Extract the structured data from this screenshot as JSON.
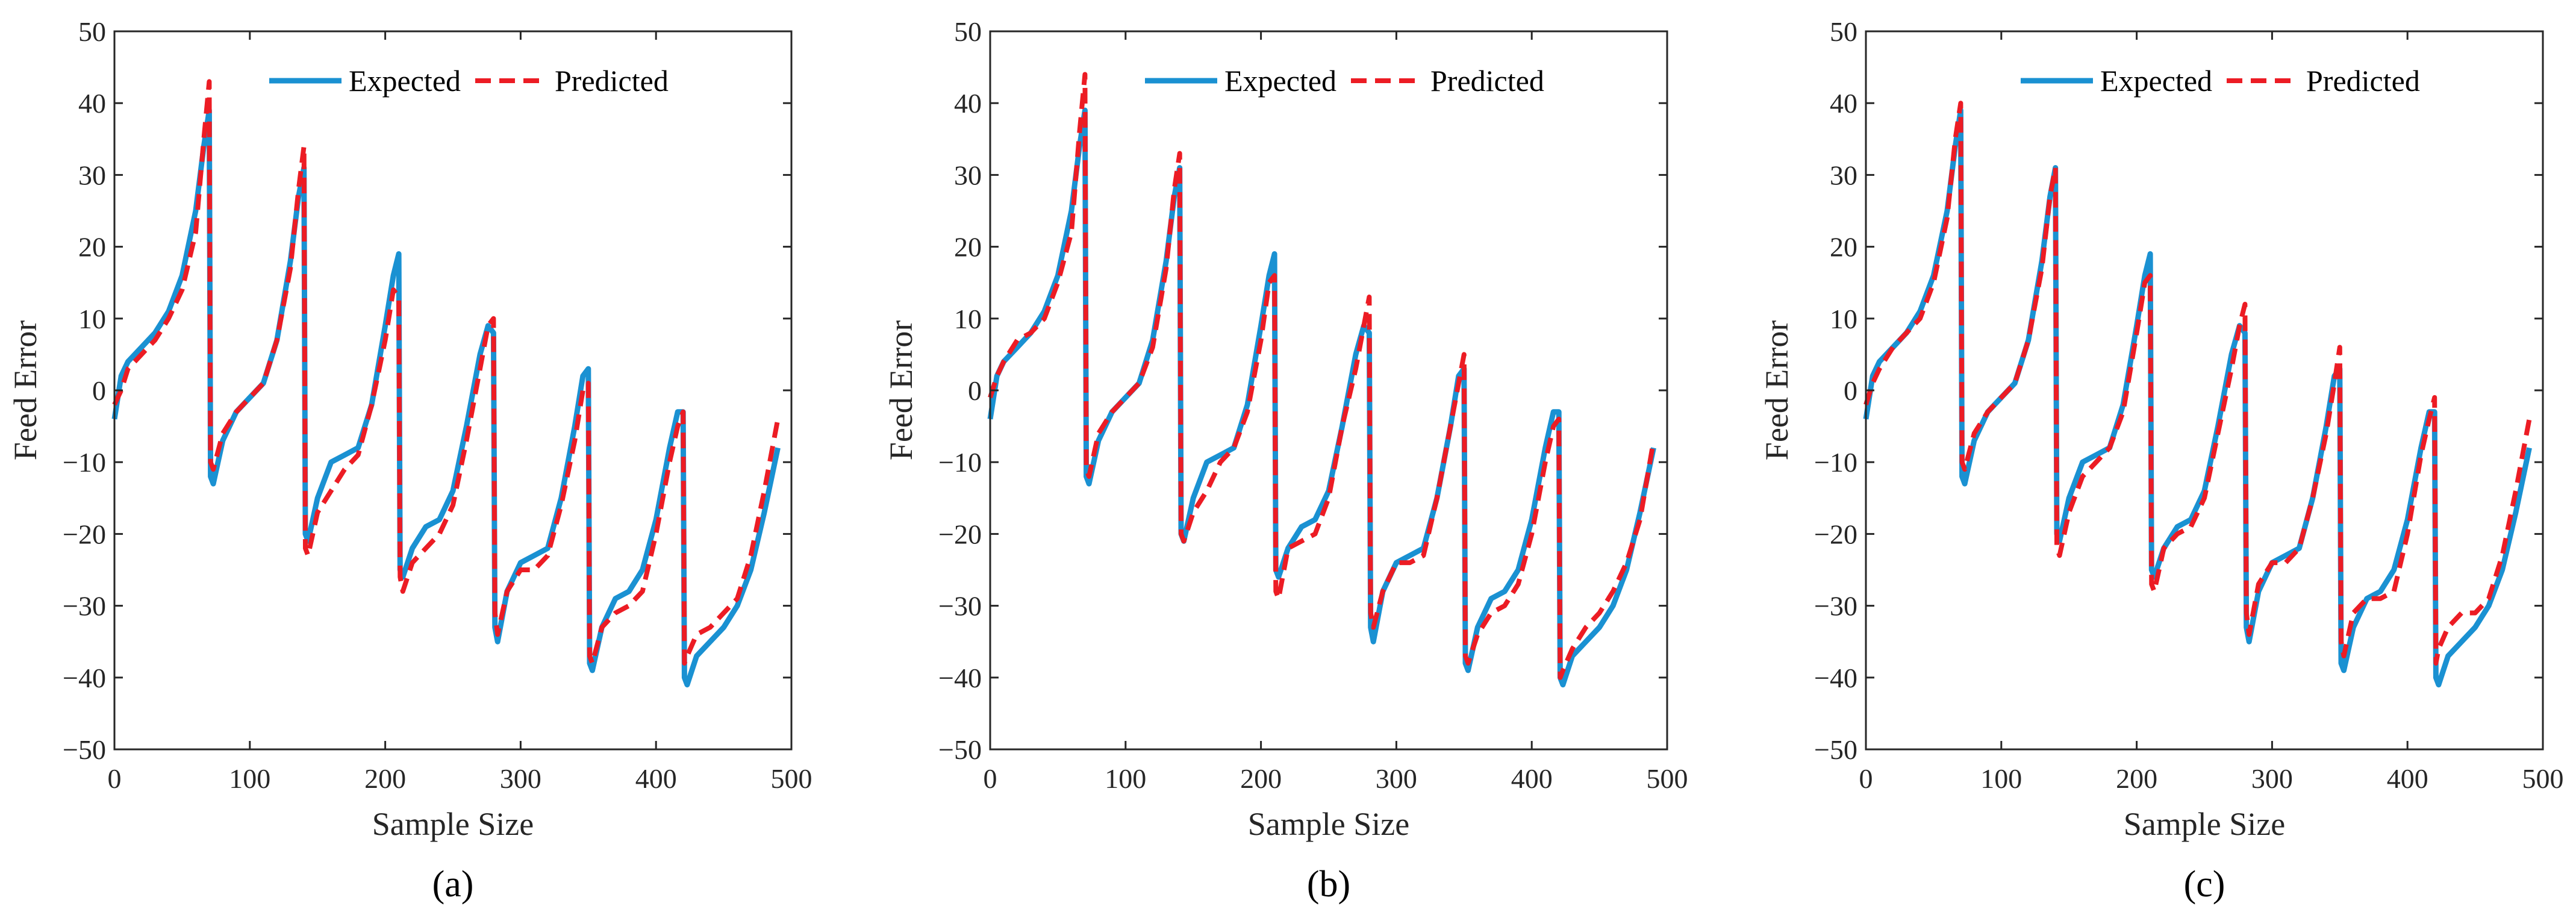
{
  "figure": {
    "panel_captions": [
      "(a)",
      "(b)",
      "(c)"
    ]
  },
  "chart_data": [
    {
      "type": "line",
      "panel": "(a)",
      "title": "",
      "xlabel": "Sample Size",
      "ylabel": "Feed Error",
      "xlim": [
        0,
        500
      ],
      "ylim": [
        -50,
        50
      ],
      "xticks": [
        0,
        100,
        200,
        300,
        400,
        500
      ],
      "yticks": [
        -50,
        -40,
        -30,
        -20,
        -10,
        0,
        10,
        20,
        30,
        40,
        50
      ],
      "xtick_labels": [
        "0",
        "100",
        "200",
        "300",
        "400",
        "500"
      ],
      "ytick_labels": [
        "−50",
        "−40",
        "−30",
        "−20",
        "−10",
        "0",
        "10",
        "20",
        "30",
        "40",
        "50"
      ],
      "grid": false,
      "legend": {
        "position": "top-center",
        "orientation": "horizontal"
      },
      "series": [
        {
          "name": "Expected",
          "color": "#1a91d2",
          "style": "solid",
          "x": [
            0,
            5,
            10,
            20,
            30,
            40,
            50,
            60,
            66,
            70,
            71,
            73,
            80,
            90,
            100,
            110,
            120,
            130,
            136,
            140,
            141,
            143,
            150,
            160,
            170,
            180,
            190,
            200,
            206,
            210,
            211,
            213,
            220,
            230,
            240,
            250,
            260,
            270,
            276,
            280,
            281,
            283,
            290,
            300,
            310,
            320,
            330,
            340,
            346,
            350,
            351,
            353,
            360,
            370,
            380,
            390,
            400,
            410,
            416,
            420,
            421,
            423,
            430,
            440,
            450,
            460,
            470,
            480,
            490
          ],
          "y": [
            -4,
            2,
            4,
            6,
            8,
            11,
            16,
            25,
            34,
            39,
            -12,
            -13,
            -7,
            -3,
            -1,
            1,
            7,
            18,
            27,
            31,
            -20,
            -21,
            -15,
            -10,
            -9,
            -8,
            -2,
            9,
            16,
            19,
            -25,
            -26,
            -22,
            -19,
            -18,
            -14,
            -5,
            5,
            9,
            8,
            -33,
            -35,
            -28,
            -24,
            -23,
            -22,
            -15,
            -5,
            2,
            3,
            -38,
            -39,
            -33,
            -29,
            -28,
            -25,
            -18,
            -8,
            -3,
            -3,
            -40,
            -41,
            -37,
            -35,
            -33,
            -30,
            -25,
            -17,
            -8
          ]
        },
        {
          "name": "Predicted",
          "color": "#ec1c24",
          "style": "dashed",
          "x": [
            0,
            5,
            10,
            20,
            30,
            40,
            50,
            60,
            66,
            70,
            71,
            73,
            80,
            90,
            100,
            110,
            120,
            130,
            136,
            140,
            141,
            143,
            150,
            160,
            170,
            180,
            190,
            200,
            206,
            210,
            211,
            213,
            220,
            230,
            240,
            250,
            260,
            270,
            276,
            280,
            281,
            283,
            290,
            300,
            310,
            320,
            330,
            340,
            346,
            350,
            351,
            353,
            360,
            370,
            380,
            390,
            400,
            410,
            416,
            420,
            421,
            423,
            430,
            440,
            450,
            460,
            470,
            480,
            490
          ],
          "y": [
            -2,
            0,
            3,
            5,
            7,
            10,
            14,
            22,
            35,
            43,
            -10,
            -11,
            -6,
            -3,
            -1,
            1,
            7,
            17,
            28,
            34,
            -22,
            -23,
            -17,
            -14,
            -11,
            -9,
            -2,
            7,
            14,
            13,
            -26,
            -28,
            -24,
            -22,
            -20,
            -16,
            -7,
            3,
            9,
            10,
            -31,
            -34,
            -28,
            -25,
            -25,
            -23,
            -16,
            -7,
            0,
            1,
            -37,
            -38,
            -33,
            -31,
            -30,
            -28,
            -20,
            -10,
            -5,
            -3,
            -38,
            -37,
            -34,
            -33,
            -31,
            -29,
            -23,
            -14,
            -4
          ]
        }
      ]
    },
    {
      "type": "line",
      "panel": "(b)",
      "title": "",
      "xlabel": "Sample Size",
      "ylabel": "Feed Error",
      "xlim": [
        0,
        500
      ],
      "ylim": [
        -50,
        50
      ],
      "xticks": [
        0,
        100,
        200,
        300,
        400,
        500
      ],
      "yticks": [
        -50,
        -40,
        -30,
        -20,
        -10,
        0,
        10,
        20,
        30,
        40,
        50
      ],
      "xtick_labels": [
        "0",
        "100",
        "200",
        "300",
        "400",
        "500"
      ],
      "ytick_labels": [
        "−50",
        "−40",
        "−30",
        "−20",
        "−10",
        "0",
        "10",
        "20",
        "30",
        "40",
        "50"
      ],
      "grid": false,
      "legend": {
        "position": "top-center",
        "orientation": "horizontal"
      },
      "series": [
        {
          "name": "Expected",
          "color": "#1a91d2",
          "style": "solid",
          "x": [
            0,
            5,
            10,
            20,
            30,
            40,
            50,
            60,
            66,
            70,
            71,
            73,
            80,
            90,
            100,
            110,
            120,
            130,
            136,
            140,
            141,
            143,
            150,
            160,
            170,
            180,
            190,
            200,
            206,
            210,
            211,
            213,
            220,
            230,
            240,
            250,
            260,
            270,
            276,
            280,
            281,
            283,
            290,
            300,
            310,
            320,
            330,
            340,
            346,
            350,
            351,
            353,
            360,
            370,
            380,
            390,
            400,
            410,
            416,
            420,
            421,
            423,
            430,
            440,
            450,
            460,
            470,
            480,
            490
          ],
          "y": [
            -4,
            2,
            4,
            6,
            8,
            11,
            16,
            25,
            34,
            39,
            -12,
            -13,
            -7,
            -3,
            -1,
            1,
            7,
            18,
            27,
            31,
            -20,
            -21,
            -15,
            -10,
            -9,
            -8,
            -2,
            9,
            16,
            19,
            -25,
            -26,
            -22,
            -19,
            -18,
            -14,
            -5,
            5,
            9,
            8,
            -33,
            -35,
            -28,
            -24,
            -23,
            -22,
            -15,
            -5,
            2,
            3,
            -38,
            -39,
            -33,
            -29,
            -28,
            -25,
            -18,
            -8,
            -3,
            -3,
            -40,
            -41,
            -37,
            -35,
            -33,
            -30,
            -25,
            -17,
            -8
          ]
        },
        {
          "name": "Predicted",
          "color": "#ec1c24",
          "style": "dashed",
          "x": [
            0,
            5,
            10,
            20,
            30,
            40,
            50,
            60,
            66,
            70,
            71,
            73,
            80,
            90,
            100,
            110,
            120,
            130,
            136,
            140,
            141,
            143,
            150,
            160,
            170,
            180,
            190,
            200,
            206,
            210,
            211,
            213,
            220,
            230,
            240,
            250,
            260,
            270,
            276,
            280,
            281,
            283,
            290,
            300,
            310,
            320,
            330,
            340,
            346,
            350,
            351,
            353,
            360,
            370,
            380,
            390,
            400,
            410,
            416,
            420,
            421,
            423,
            430,
            440,
            450,
            460,
            470,
            480,
            490
          ],
          "y": [
            -1,
            2,
            4,
            7,
            8,
            10,
            15,
            22,
            36,
            44,
            -11,
            -12,
            -6,
            -3,
            -1,
            1,
            6,
            17,
            28,
            33,
            -20,
            -21,
            -17,
            -14,
            -10,
            -8,
            -3,
            7,
            15,
            16,
            -28,
            -29,
            -22,
            -21,
            -20,
            -15,
            -5,
            3,
            9,
            13,
            -31,
            -33,
            -28,
            -24,
            -24,
            -23,
            -15,
            -5,
            1,
            5,
            -37,
            -38,
            -34,
            -31,
            -30,
            -27,
            -20,
            -10,
            -5,
            -4,
            -40,
            -39,
            -36,
            -33,
            -31,
            -28,
            -24,
            -18,
            -7
          ]
        }
      ]
    },
    {
      "type": "line",
      "panel": "(c)",
      "title": "",
      "xlabel": "Sample Size",
      "ylabel": "Feed Error",
      "xlim": [
        0,
        500
      ],
      "ylim": [
        -50,
        50
      ],
      "xticks": [
        0,
        100,
        200,
        300,
        400,
        500
      ],
      "yticks": [
        -50,
        -40,
        -30,
        -20,
        -10,
        0,
        10,
        20,
        30,
        40,
        50
      ],
      "xtick_labels": [
        "0",
        "100",
        "200",
        "300",
        "400",
        "500"
      ],
      "ytick_labels": [
        "−50",
        "−40",
        "−30",
        "−20",
        "−10",
        "0",
        "10",
        "20",
        "30",
        "40",
        "50"
      ],
      "grid": false,
      "legend": {
        "position": "top-center",
        "orientation": "horizontal"
      },
      "series": [
        {
          "name": "Expected",
          "color": "#1a91d2",
          "style": "solid",
          "x": [
            0,
            5,
            10,
            20,
            30,
            40,
            50,
            60,
            66,
            70,
            71,
            73,
            80,
            90,
            100,
            110,
            120,
            130,
            136,
            140,
            141,
            143,
            150,
            160,
            170,
            180,
            190,
            200,
            206,
            210,
            211,
            213,
            220,
            230,
            240,
            250,
            260,
            270,
            276,
            280,
            281,
            283,
            290,
            300,
            310,
            320,
            330,
            340,
            346,
            350,
            351,
            353,
            360,
            370,
            380,
            390,
            400,
            410,
            416,
            420,
            421,
            423,
            430,
            440,
            450,
            460,
            470,
            480,
            490
          ],
          "y": [
            -4,
            2,
            4,
            6,
            8,
            11,
            16,
            25,
            34,
            39,
            -12,
            -13,
            -7,
            -3,
            -1,
            1,
            7,
            18,
            27,
            31,
            -20,
            -21,
            -15,
            -10,
            -9,
            -8,
            -2,
            9,
            16,
            19,
            -25,
            -26,
            -22,
            -19,
            -18,
            -14,
            -5,
            5,
            9,
            8,
            -33,
            -35,
            -28,
            -24,
            -23,
            -22,
            -15,
            -5,
            2,
            3,
            -38,
            -39,
            -33,
            -29,
            -28,
            -25,
            -18,
            -8,
            -3,
            -3,
            -40,
            -41,
            -37,
            -35,
            -33,
            -30,
            -25,
            -17,
            -8
          ]
        },
        {
          "name": "Predicted",
          "color": "#ec1c24",
          "style": "dashed",
          "x": [
            0,
            5,
            10,
            20,
            30,
            40,
            50,
            60,
            66,
            70,
            71,
            73,
            80,
            90,
            100,
            110,
            120,
            130,
            136,
            140,
            141,
            143,
            150,
            160,
            170,
            180,
            190,
            200,
            206,
            210,
            211,
            213,
            220,
            230,
            240,
            250,
            260,
            270,
            276,
            280,
            281,
            283,
            290,
            300,
            310,
            320,
            330,
            340,
            346,
            350,
            351,
            353,
            360,
            370,
            380,
            390,
            400,
            410,
            416,
            420,
            421,
            423,
            430,
            440,
            450,
            460,
            470,
            480,
            490
          ],
          "y": [
            -2,
            1,
            3,
            6,
            8,
            10,
            15,
            24,
            35,
            40,
            -10,
            -11,
            -6,
            -3,
            -1,
            1,
            7,
            17,
            27,
            31,
            -22,
            -23,
            -17,
            -12,
            -10,
            -8,
            -3,
            8,
            15,
            16,
            -27,
            -28,
            -22,
            -20,
            -19,
            -15,
            -6,
            3,
            9,
            12,
            -31,
            -34,
            -27,
            -24,
            -24,
            -22,
            -15,
            -6,
            1,
            6,
            -35,
            -37,
            -31,
            -29,
            -29,
            -28,
            -20,
            -9,
            -4,
            -1,
            -38,
            -36,
            -33,
            -31,
            -31,
            -29,
            -23,
            -14,
            -4
          ]
        }
      ]
    }
  ]
}
